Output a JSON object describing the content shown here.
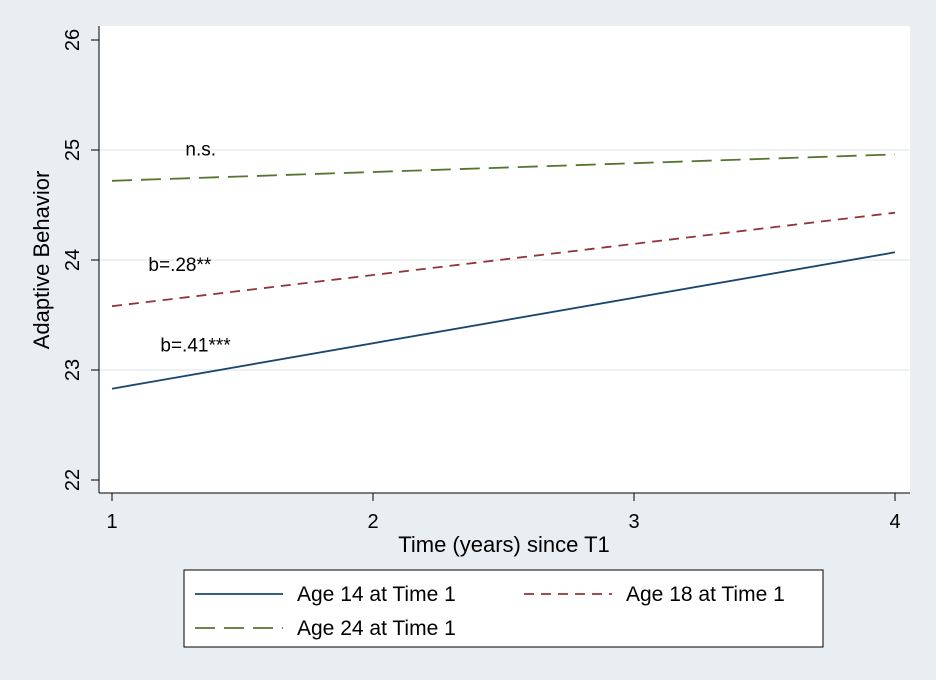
{
  "chart_data": {
    "type": "line",
    "xlabel": "Time (years) since T1",
    "ylabel": "Adaptive Behavior",
    "xlim": [
      1,
      4
    ],
    "ylim": [
      22,
      26
    ],
    "x_ticks": [
      "1",
      "2",
      "3",
      "4"
    ],
    "y_ticks": [
      "22",
      "23",
      "24",
      "25",
      "26"
    ],
    "grid": "horizontal",
    "legend_position": "bottom",
    "series": [
      {
        "name": "Age 14  at Time 1",
        "x": [
          1,
          4
        ],
        "y": [
          22.83,
          24.07
        ],
        "color": "#1a476f",
        "dash": "solid"
      },
      {
        "name": "Age 18 at Time 1",
        "x": [
          1,
          4
        ],
        "y": [
          23.58,
          24.43
        ],
        "color": "#90353b",
        "dash": "short-dash"
      },
      {
        "name": "Age 24  at Time 1",
        "x": [
          1,
          4
        ],
        "y": [
          24.72,
          24.96
        ],
        "color": "#55752f",
        "dash": "long-dash"
      }
    ],
    "annotations": [
      {
        "text": "n.s.",
        "x": 1.34,
        "y": 24.95
      },
      {
        "text": "b=.28**",
        "x": 1.26,
        "y": 23.9
      },
      {
        "text": "b=.41***",
        "x": 1.32,
        "y": 23.17
      }
    ]
  }
}
